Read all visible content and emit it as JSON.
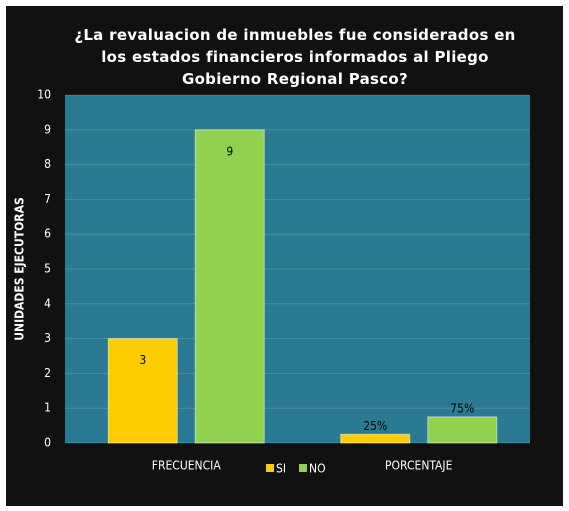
{
  "chart_data": {
    "type": "bar",
    "title": "¿La revaluacion de inmuebles fue considerados en los estados financieros informados al Pliego Gobierno Regional Pasco?",
    "y_label": "UNIDADES EJECUTORAS",
    "categories": [
      "FRECUENCIA",
      "PORCENTAJE"
    ],
    "series": [
      {
        "name": "SI",
        "color": "#ffcc00",
        "values": [
          3,
          0.25
        ],
        "value_labels": [
          "3",
          "25%"
        ]
      },
      {
        "name": "NO",
        "color": "#92d050",
        "values": [
          9,
          0.75
        ],
        "value_labels": [
          "9",
          "75%"
        ]
      }
    ],
    "ylim": [
      0,
      10
    ],
    "yticks": [
      0,
      1,
      2,
      3,
      4,
      5,
      6,
      7,
      8,
      9,
      10
    ],
    "grid": true
  }
}
